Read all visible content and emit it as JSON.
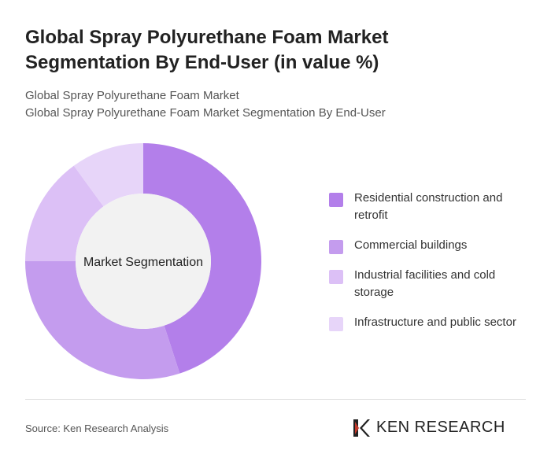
{
  "chart_data": {
    "type": "donut",
    "title": "Global Spray Polyurethane Foam Market Segmentation By End-User (in value %)",
    "subtitles": [
      "Global Spray Polyurethane Foam Market",
      "Global Spray Polyurethane Foam Market Segmentation By End-User"
    ],
    "center_label": "Market Segmentation",
    "categories": [
      "Residential construction and retrofit",
      "Commercial buildings",
      "Industrial facilities and cold storage",
      "Infrastructure and public sector"
    ],
    "values": [
      45,
      30,
      15,
      10
    ],
    "colors": [
      "#b37fea",
      "#c49cee",
      "#dcc0f6",
      "#e7d5f9"
    ]
  },
  "source": "Source: Ken Research Analysis",
  "brand": "KEN RESEARCH"
}
